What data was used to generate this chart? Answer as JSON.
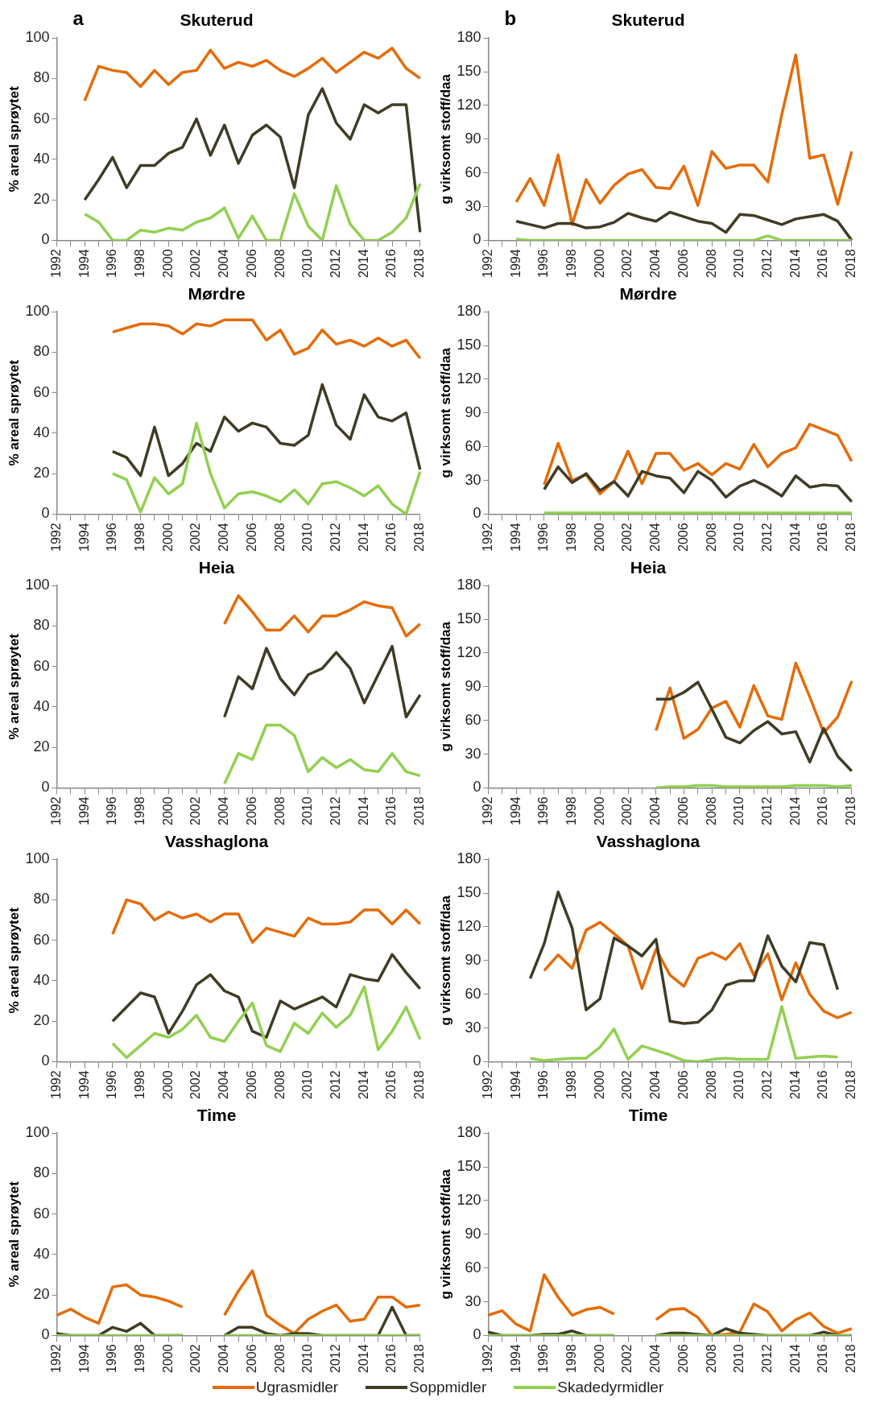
{
  "chart_data": [
    {
      "type": "line",
      "title": "Skuterud",
      "ylabel": "% areal sprøytet",
      "annotations": [
        "a"
      ],
      "categories": [
        "1992",
        null,
        "1994",
        null,
        "1996",
        null,
        "1998",
        null,
        "2000",
        null,
        "2002",
        null,
        "2004",
        null,
        "2006",
        null,
        "2008",
        null,
        "2010",
        null,
        "2012",
        null,
        "2014",
        null,
        "2016",
        null,
        "2018"
      ],
      "ylim": [
        0,
        100
      ],
      "yticks": [
        0,
        20,
        40,
        60,
        80,
        100
      ],
      "grid": false,
      "marker": "none",
      "legend": false,
      "series": [
        {
          "color": "#e46c0a",
          "values": [
            null,
            null,
            69,
            86,
            84,
            83,
            76,
            84,
            77,
            83,
            84,
            94,
            85,
            88,
            86,
            89,
            84,
            81,
            85,
            90,
            83,
            88,
            93,
            90,
            95,
            85,
            80
          ]
        },
        {
          "color": "#403c25",
          "values": [
            null,
            null,
            20,
            30,
            41,
            26,
            37,
            37,
            43,
            46,
            60,
            42,
            57,
            38,
            52,
            57,
            51,
            26,
            62,
            75,
            58,
            50,
            67,
            63,
            67,
            67,
            4
          ]
        },
        {
          "color": "#92d050",
          "values": [
            null,
            null,
            13,
            9,
            0,
            0,
            5,
            4,
            6,
            5,
            9,
            11,
            16,
            1,
            12,
            0,
            0,
            23,
            7,
            0,
            27,
            8,
            0,
            0,
            4,
            11,
            28
          ]
        }
      ]
    },
    {
      "type": "line",
      "title": "Skuterud",
      "ylabel": "g virksomt stoff/daa",
      "annotations": [
        "b"
      ],
      "categories": [
        "1992",
        null,
        "1994",
        null,
        "1996",
        null,
        "1998",
        null,
        "2000",
        null,
        "2002",
        null,
        "2004",
        null,
        "2006",
        null,
        "2008",
        null,
        "2010",
        null,
        "2012",
        null,
        "2014",
        null,
        "2016",
        null,
        "2018"
      ],
      "ylim": [
        0,
        180
      ],
      "yticks": [
        0,
        30,
        60,
        90,
        120,
        150,
        180
      ],
      "grid": false,
      "marker": "none",
      "legend": false,
      "series": [
        {
          "color": "#e46c0a",
          "values": [
            null,
            null,
            34,
            55,
            31,
            76,
            14,
            54,
            33,
            49,
            59,
            63,
            47,
            46,
            66,
            31,
            79,
            64,
            67,
            67,
            52,
            112,
            165,
            73,
            76,
            32,
            79
          ]
        },
        {
          "color": "#403c25",
          "values": [
            null,
            null,
            17,
            14,
            11,
            15,
            15,
            11,
            12,
            16,
            24,
            20,
            17,
            25,
            21,
            17,
            15,
            7,
            23,
            22,
            18,
            14,
            19,
            21,
            23,
            17,
            0
          ]
        },
        {
          "color": "#92d050",
          "values": [
            null,
            null,
            1,
            0,
            0,
            0,
            0,
            0,
            0,
            0,
            0,
            0,
            0,
            0,
            0,
            0,
            0,
            0,
            0,
            0,
            4,
            0,
            0,
            0,
            0,
            0,
            0
          ]
        }
      ]
    },
    {
      "type": "line",
      "title": "Mørdre",
      "ylabel": "% areal sprøytet",
      "categories": [
        "1992",
        null,
        "1994",
        null,
        "1996",
        null,
        "1998",
        null,
        "2000",
        null,
        "2002",
        null,
        "2004",
        null,
        "2006",
        null,
        "2008",
        null,
        "2010",
        null,
        "2012",
        null,
        "2014",
        null,
        "2016",
        null,
        "2018"
      ],
      "ylim": [
        0,
        100
      ],
      "yticks": [
        0,
        20,
        40,
        60,
        80,
        100
      ],
      "grid": false,
      "marker": "none",
      "legend": false,
      "series": [
        {
          "color": "#e46c0a",
          "values": [
            null,
            null,
            null,
            null,
            90,
            92,
            94,
            94,
            93,
            89,
            94,
            93,
            96,
            96,
            96,
            86,
            91,
            79,
            82,
            91,
            84,
            86,
            83,
            87,
            83,
            86,
            77
          ]
        },
        {
          "color": "#403c25",
          "values": [
            null,
            null,
            null,
            null,
            31,
            28,
            19,
            43,
            19,
            25,
            35,
            31,
            48,
            41,
            45,
            43,
            35,
            34,
            39,
            64,
            44,
            37,
            59,
            48,
            46,
            50,
            22
          ]
        },
        {
          "color": "#92d050",
          "values": [
            null,
            null,
            null,
            null,
            20,
            17,
            1,
            18,
            10,
            15,
            45,
            20,
            3,
            10,
            11,
            9,
            6,
            12,
            5,
            15,
            16,
            13,
            9,
            14,
            5,
            0,
            21
          ]
        }
      ]
    },
    {
      "type": "line",
      "title": "Mørdre",
      "ylabel": "g virksomt stoff/daa",
      "categories": [
        "1992",
        null,
        "1994",
        null,
        "1996",
        null,
        "1998",
        null,
        "2000",
        null,
        "2002",
        null,
        "2004",
        null,
        "2006",
        null,
        "2008",
        null,
        "2010",
        null,
        "2012",
        null,
        "2014",
        null,
        "2016",
        null,
        "2018"
      ],
      "ylim": [
        0,
        180
      ],
      "yticks": [
        0,
        30,
        60,
        90,
        120,
        150,
        180
      ],
      "grid": false,
      "marker": "none",
      "legend": false,
      "series": [
        {
          "color": "#e46c0a",
          "values": [
            null,
            null,
            null,
            null,
            26,
            63,
            30,
            35,
            18,
            29,
            56,
            27,
            54,
            54,
            39,
            45,
            35,
            45,
            40,
            62,
            42,
            54,
            59,
            80,
            75,
            70,
            47
          ]
        },
        {
          "color": "#403c25",
          "values": [
            null,
            null,
            null,
            null,
            22,
            42,
            28,
            36,
            21,
            29,
            16,
            38,
            34,
            32,
            19,
            38,
            30,
            15,
            25,
            30,
            24,
            16,
            34,
            24,
            26,
            25,
            11
          ]
        },
        {
          "color": "#92d050",
          "values": [
            null,
            null,
            null,
            null,
            1,
            1,
            1,
            1,
            1,
            1,
            1,
            1,
            1,
            1,
            1,
            1,
            1,
            1,
            1,
            1,
            1,
            1,
            1,
            1,
            1,
            1,
            1
          ]
        }
      ]
    },
    {
      "type": "line",
      "title": "Heia",
      "ylabel": "% areal sprøytet",
      "categories": [
        "1992",
        null,
        "1994",
        null,
        "1996",
        null,
        "1998",
        null,
        "2000",
        null,
        "2002",
        null,
        "2004",
        null,
        "2006",
        null,
        "2008",
        null,
        "2010",
        null,
        "2012",
        null,
        "2014",
        null,
        "2016",
        null,
        "2018"
      ],
      "ylim": [
        0,
        100
      ],
      "yticks": [
        0,
        20,
        40,
        60,
        80,
        100
      ],
      "grid": false,
      "marker": "none",
      "legend": false,
      "series": [
        {
          "color": "#e46c0a",
          "values": [
            null,
            null,
            null,
            null,
            null,
            null,
            null,
            null,
            null,
            null,
            null,
            null,
            81,
            95,
            87,
            78,
            78,
            85,
            77,
            85,
            85,
            88,
            92,
            90,
            89,
            75,
            81
          ]
        },
        {
          "color": "#403c25",
          "values": [
            null,
            null,
            null,
            null,
            null,
            null,
            null,
            null,
            null,
            null,
            null,
            null,
            35,
            55,
            49,
            69,
            54,
            46,
            56,
            59,
            67,
            59,
            42,
            56,
            70,
            35,
            46
          ]
        },
        {
          "color": "#92d050",
          "values": [
            null,
            null,
            null,
            null,
            null,
            null,
            null,
            null,
            null,
            null,
            null,
            null,
            2,
            17,
            14,
            31,
            31,
            26,
            8,
            15,
            10,
            14,
            9,
            8,
            17,
            8,
            6
          ]
        }
      ]
    },
    {
      "type": "line",
      "title": "Heia",
      "ylabel": "g virksomt stoff/daa",
      "categories": [
        "1992",
        null,
        "1994",
        null,
        "1996",
        null,
        "1998",
        null,
        "2000",
        null,
        "2002",
        null,
        "2004",
        null,
        "2006",
        null,
        "2008",
        null,
        "2010",
        null,
        "2012",
        null,
        "2014",
        null,
        "2016",
        null,
        "2018"
      ],
      "ylim": [
        0,
        180
      ],
      "yticks": [
        0,
        30,
        60,
        90,
        120,
        150,
        180
      ],
      "grid": false,
      "marker": "none",
      "legend": false,
      "series": [
        {
          "color": "#e46c0a",
          "values": [
            null,
            null,
            null,
            null,
            null,
            null,
            null,
            null,
            null,
            null,
            null,
            null,
            51,
            89,
            44,
            52,
            71,
            77,
            54,
            91,
            64,
            61,
            111,
            81,
            49,
            63,
            95
          ]
        },
        {
          "color": "#403c25",
          "values": [
            null,
            null,
            null,
            null,
            null,
            null,
            null,
            null,
            null,
            null,
            null,
            null,
            79,
            79,
            85,
            94,
            70,
            45,
            40,
            51,
            59,
            48,
            50,
            23,
            53,
            28,
            15
          ]
        },
        {
          "color": "#92d050",
          "values": [
            null,
            null,
            null,
            null,
            null,
            null,
            null,
            null,
            null,
            null,
            null,
            null,
            0,
            1,
            1,
            2,
            2,
            1,
            1,
            1,
            1,
            1,
            2,
            2,
            2,
            1,
            2
          ]
        }
      ]
    },
    {
      "type": "line",
      "title": "Vasshaglona",
      "ylabel": "% areal sprøytet",
      "categories": [
        "1992",
        null,
        "1994",
        null,
        "1996",
        null,
        "1998",
        null,
        "2000",
        null,
        "2002",
        null,
        "2004",
        null,
        "2006",
        null,
        "2008",
        null,
        "2010",
        null,
        "2012",
        null,
        "2014",
        null,
        "2016",
        null,
        "2018"
      ],
      "ylim": [
        0,
        100
      ],
      "yticks": [
        0,
        20,
        40,
        60,
        80,
        100
      ],
      "grid": false,
      "marker": "none",
      "legend": false,
      "series": [
        {
          "color": "#e46c0a",
          "values": [
            null,
            null,
            null,
            null,
            63,
            80,
            78,
            70,
            74,
            71,
            73,
            69,
            73,
            73,
            59,
            66,
            64,
            62,
            71,
            68,
            68,
            69,
            75,
            75,
            68,
            75,
            68
          ]
        },
        {
          "color": "#403c25",
          "values": [
            null,
            null,
            null,
            null,
            20,
            27,
            34,
            32,
            14,
            25,
            38,
            43,
            35,
            32,
            15,
            12,
            30,
            26,
            29,
            32,
            27,
            43,
            41,
            40,
            53,
            44,
            36
          ]
        },
        {
          "color": "#92d050",
          "values": [
            null,
            null,
            null,
            null,
            9,
            2,
            8,
            14,
            12,
            16,
            23,
            12,
            10,
            20,
            29,
            8,
            5,
            19,
            14,
            24,
            17,
            23,
            37,
            6,
            15,
            27,
            11
          ]
        }
      ]
    },
    {
      "type": "line",
      "title": "Vasshaglona",
      "ylabel": "g virksomt stoff/daa",
      "categories": [
        "1992",
        null,
        "1994",
        null,
        "1996",
        null,
        "1998",
        null,
        "2000",
        null,
        "2002",
        null,
        "2004",
        null,
        "2006",
        null,
        "2008",
        null,
        "2010",
        null,
        "2012",
        null,
        "2014",
        null,
        "2016",
        null,
        "2018"
      ],
      "ylim": [
        0,
        180
      ],
      "yticks": [
        0,
        30,
        60,
        90,
        120,
        150,
        180
      ],
      "grid": false,
      "marker": "none",
      "legend": false,
      "series": [
        {
          "color": "#e46c0a",
          "values": [
            null,
            null,
            null,
            null,
            81,
            95,
            83,
            117,
            124,
            114,
            103,
            65,
            100,
            77,
            67,
            92,
            97,
            91,
            105,
            77,
            96,
            55,
            88,
            60,
            45,
            39,
            44
          ]
        },
        {
          "color": "#403c25",
          "values": [
            null,
            null,
            null,
            74,
            105,
            151,
            119,
            46,
            56,
            110,
            103,
            94,
            109,
            36,
            34,
            35,
            46,
            68,
            72,
            72,
            112,
            85,
            71,
            106,
            104,
            64,
            null
          ]
        },
        {
          "color": "#92d050",
          "values": [
            null,
            null,
            null,
            3,
            1,
            2,
            3,
            3,
            13,
            29,
            2,
            14,
            10,
            6,
            1,
            0,
            2,
            3,
            2,
            2,
            2,
            49,
            3,
            4,
            5,
            4,
            null
          ]
        }
      ]
    },
    {
      "type": "line",
      "title": "Time",
      "ylabel": "% areal sprøytet",
      "categories": [
        "1992",
        null,
        "1994",
        null,
        "1996",
        null,
        "1998",
        null,
        "2000",
        null,
        "2002",
        null,
        "2004",
        null,
        "2006",
        null,
        "2008",
        null,
        "2010",
        null,
        "2012",
        null,
        "2014",
        null,
        "2016",
        null,
        "2018"
      ],
      "ylim": [
        0,
        100
      ],
      "yticks": [
        0,
        20,
        40,
        60,
        80,
        100
      ],
      "grid": false,
      "marker": "none",
      "legend": "bottom",
      "series": [
        {
          "name": "Ugrasmidler",
          "color": "#e46c0a",
          "values": [
            10,
            13,
            9,
            6,
            24,
            25,
            20,
            19,
            17,
            14,
            null,
            null,
            10,
            22,
            32,
            10,
            5,
            1,
            8,
            12,
            15,
            7,
            8,
            19,
            19,
            14,
            15
          ]
        },
        {
          "name": "Soppmidler",
          "color": "#403c25",
          "values": [
            1,
            0,
            0,
            0,
            4,
            2,
            6,
            0,
            0,
            0,
            null,
            null,
            0,
            4,
            4,
            1,
            0,
            1,
            1,
            0,
            0,
            0,
            0,
            0,
            14,
            0,
            0
          ]
        },
        {
          "name": "Skadedyrmidler",
          "color": "#92d050",
          "values": [
            0,
            0,
            0,
            0,
            0,
            0,
            0,
            0,
            0,
            0,
            null,
            null,
            0,
            0,
            0,
            0,
            0,
            0,
            0,
            0,
            0,
            0,
            0,
            0,
            0,
            0,
            0
          ]
        }
      ]
    },
    {
      "type": "line",
      "title": "Time",
      "ylabel": "g virksomt stoff/daa",
      "categories": [
        "1992",
        null,
        "1994",
        null,
        "1996",
        null,
        "1998",
        null,
        "2000",
        null,
        "2002",
        null,
        "2004",
        null,
        "2006",
        null,
        "2008",
        null,
        "2010",
        null,
        "2012",
        null,
        "2014",
        null,
        "2016",
        null,
        "2018"
      ],
      "ylim": [
        0,
        180
      ],
      "yticks": [
        0,
        30,
        60,
        90,
        120,
        150,
        180
      ],
      "grid": false,
      "marker": "none",
      "legend": false,
      "series": [
        {
          "color": "#e46c0a",
          "values": [
            18,
            22,
            10,
            4,
            54,
            34,
            18,
            23,
            25,
            19,
            null,
            null,
            14,
            23,
            24,
            16,
            0,
            1,
            3,
            28,
            21,
            4,
            14,
            20,
            8,
            2,
            6
          ]
        },
        {
          "color": "#403c25",
          "values": [
            3,
            0,
            0,
            0,
            1,
            1,
            4,
            0,
            0,
            0,
            null,
            null,
            0,
            2,
            2,
            1,
            0,
            6,
            2,
            1,
            0,
            0,
            0,
            0,
            3,
            0,
            0
          ]
        },
        {
          "color": "#92d050",
          "values": [
            0,
            0,
            0,
            0,
            0,
            0,
            0,
            0,
            0,
            0,
            null,
            null,
            0,
            0,
            0,
            0,
            0,
            0,
            0,
            0,
            0,
            0,
            0,
            0,
            0,
            0,
            0
          ]
        }
      ]
    }
  ]
}
